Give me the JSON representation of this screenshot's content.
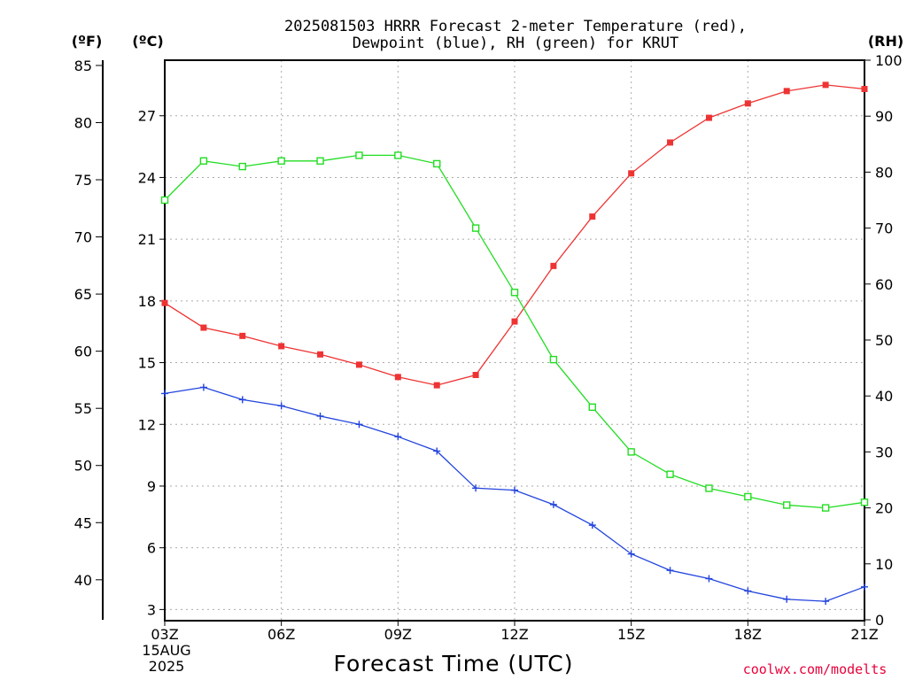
{
  "chart_data": {
    "type": "line",
    "title_line1": "2025081503 HRRR Forecast 2-meter Temperature (red),",
    "title_line2": "Dewpoint (blue), RH (green) for KRUT",
    "xlabel": "Forecast Time (UTC)",
    "date_line1": "15AUG",
    "date_line2": "2025",
    "credit": "coolwx.com/modelts",
    "unit_f": "(ºF)",
    "unit_c": "(ºC)",
    "unit_rh": "(RH)",
    "x_tick_labels": [
      "03Z",
      "06Z",
      "09Z",
      "12Z",
      "15Z",
      "18Z",
      "21Z"
    ],
    "x_tick_hours": [
      3,
      6,
      9,
      12,
      15,
      18,
      21
    ],
    "hours": [
      3,
      4,
      5,
      6,
      7,
      8,
      9,
      10,
      11,
      12,
      13,
      14,
      15,
      16,
      17,
      18,
      19,
      20,
      21
    ],
    "x_range": [
      3,
      21
    ],
    "celsius_axis": {
      "range": [
        2.5,
        29.7
      ],
      "ticks": [
        3,
        6,
        9,
        12,
        15,
        18,
        21,
        24,
        27
      ]
    },
    "fahrenheit_ticks": [
      40,
      45,
      50,
      55,
      60,
      65,
      70,
      75,
      80,
      85
    ],
    "rh_axis": {
      "range": [
        0,
        100
      ],
      "ticks": [
        0,
        10,
        20,
        30,
        40,
        50,
        60,
        70,
        80,
        90,
        100
      ]
    },
    "grid": true,
    "series": [
      {
        "name": "Temperature",
        "color": "#ee3333",
        "marker": "filled-square",
        "axis": "celsius",
        "values": [
          17.9,
          16.7,
          16.3,
          15.8,
          15.4,
          14.9,
          14.3,
          13.9,
          14.4,
          17.0,
          19.7,
          22.1,
          24.2,
          25.7,
          26.9,
          27.6,
          28.2,
          28.5,
          28.3
        ]
      },
      {
        "name": "Dewpoint",
        "color": "#2244dd",
        "marker": "plus",
        "axis": "celsius",
        "values": [
          13.5,
          13.8,
          13.2,
          12.9,
          12.4,
          12.0,
          11.4,
          10.7,
          8.9,
          8.8,
          8.1,
          7.1,
          5.7,
          4.9,
          4.5,
          3.9,
          3.5,
          3.4,
          4.1
        ]
      },
      {
        "name": "RH",
        "color": "#22dd22",
        "marker": "open-square",
        "axis": "rh",
        "values": [
          75.0,
          82.0,
          81.0,
          82.0,
          82.0,
          83.0,
          83.0,
          81.5,
          70.0,
          58.5,
          46.5,
          38.0,
          30.0,
          26.0,
          23.5,
          22.0,
          20.5,
          20.0,
          21.0
        ]
      }
    ]
  }
}
